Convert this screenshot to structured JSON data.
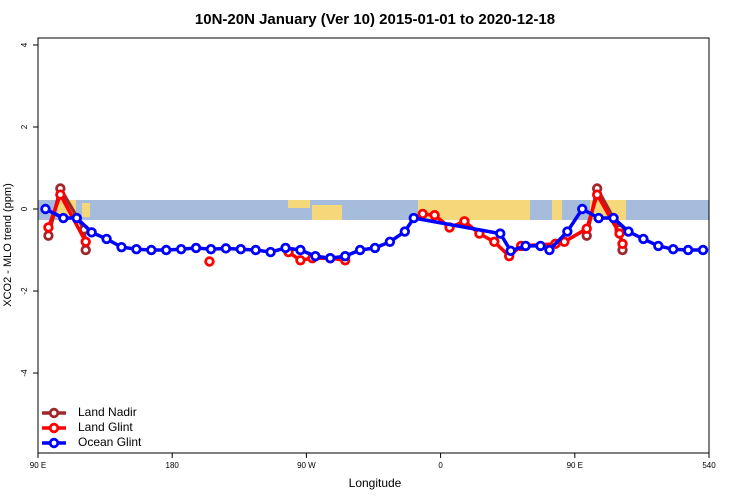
{
  "chart_data": {
    "type": "line",
    "title": "10N-20N January (Ver 10)   2015-01-01 to 2020-12-18",
    "x_label": "Longitude",
    "y_label": "XCO2 - MLO trend (ppm)",
    "xlim": [
      90,
      540
    ],
    "ylim": [
      -5.95,
      4.17
    ],
    "xticks": [
      {
        "value": 90,
        "label": "90 E"
      },
      180,
      {
        "value": 270,
        "label": "90 W"
      },
      {
        "value": 360,
        "label": "0"
      },
      {
        "value": 450,
        "label": "90 E"
      },
      540
    ],
    "yticks": [
      -4,
      -2,
      0,
      2,
      4
    ],
    "legend": "bottomleft",
    "series": [
      {
        "name": "Land Nadir",
        "color": "#a0282d",
        "x": [
          97,
          105,
          121,
          122,
          300,
          458,
          465,
          480,
          482
        ],
        "values": [
          -0.65,
          0.5,
          -0.5,
          -1.0,
          null,
          -0.65,
          0.5,
          -0.5,
          -1.0
        ]
      },
      {
        "name": "Land Glint",
        "color": "#ff0000",
        "x": [
          97,
          105,
          122,
          160,
          205,
          230,
          258,
          266,
          274,
          286,
          296,
          320,
          348,
          356,
          366,
          376,
          386,
          396,
          406,
          414,
          437,
          443,
          458,
          465,
          480,
          482
        ],
        "values": [
          -0.45,
          0.35,
          -0.8,
          null,
          -1.28,
          null,
          -1.05,
          -1.25,
          -1.2,
          -1.2,
          -1.25,
          null,
          -0.12,
          -0.15,
          -0.45,
          -0.3,
          -0.6,
          -0.8,
          -1.15,
          -0.9,
          -0.85,
          -0.8,
          -0.48,
          0.35,
          -0.6,
          -0.85
        ]
      },
      {
        "name": "Ocean Glint",
        "color": "#0000ff",
        "x": [
          95,
          107,
          116,
          126,
          136,
          146,
          156,
          166,
          176,
          186,
          196,
          206,
          216,
          226,
          236,
          246,
          256,
          266,
          276,
          286,
          296,
          306,
          316,
          326,
          336,
          342,
          400,
          407,
          417,
          427,
          433,
          445,
          455,
          466,
          476,
          486,
          496,
          506,
          516,
          526,
          536
        ],
        "values": [
          0.0,
          -0.22,
          -0.22,
          -0.57,
          -0.73,
          -0.93,
          -0.98,
          -1.0,
          -1.0,
          -0.98,
          -0.95,
          -0.98,
          -0.96,
          -0.98,
          -1.0,
          -1.05,
          -0.95,
          -1.0,
          -1.15,
          -1.2,
          -1.15,
          -1.0,
          -0.95,
          -0.8,
          -0.55,
          -0.22,
          -0.6,
          -1.02,
          -0.9,
          -0.9,
          -1.0,
          -0.55,
          0.0,
          -0.22,
          -0.22,
          -0.55,
          -0.73,
          -0.9,
          -0.98,
          -1.0,
          -1.0
        ]
      }
    ]
  }
}
